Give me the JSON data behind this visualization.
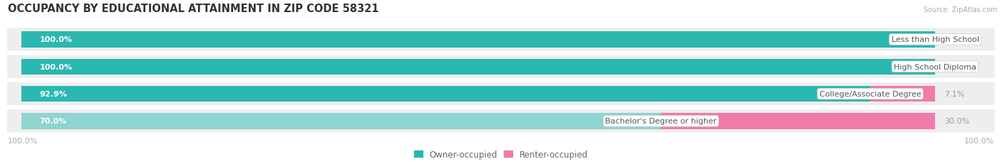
{
  "title": "OCCUPANCY BY EDUCATIONAL ATTAINMENT IN ZIP CODE 58321",
  "source": "Source: ZipAtlas.com",
  "categories": [
    "Less than High School",
    "High School Diploma",
    "College/Associate Degree",
    "Bachelor's Degree or higher"
  ],
  "owner_values": [
    100.0,
    100.0,
    92.9,
    70.0
  ],
  "renter_values": [
    0.0,
    0.0,
    7.1,
    30.0
  ],
  "owner_colors": [
    "#2ab8b0",
    "#2ab8b0",
    "#2ab8b0",
    "#8ed4d0"
  ],
  "renter_colors": [
    "#f4aec4",
    "#f4aec4",
    "#f07aaa",
    "#f07aaa"
  ],
  "row_bg_color": "#eeeeee",
  "fig_bg_color": "#ffffff",
  "title_fontsize": 10.5,
  "label_fontsize": 8,
  "pct_fontsize": 8,
  "axis_fontsize": 8,
  "left_axis_label": "100.0%",
  "right_axis_label": "100.0%",
  "legend_owner": "Owner-occupied",
  "legend_renter": "Renter-occupied"
}
